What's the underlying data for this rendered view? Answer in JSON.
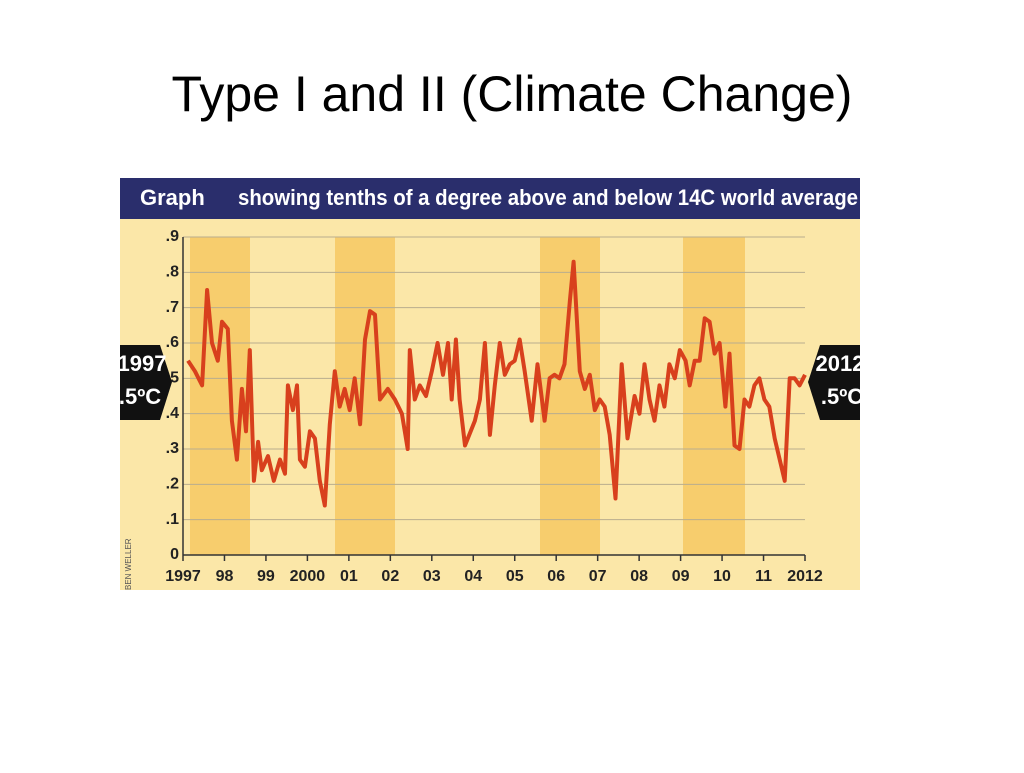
{
  "slide_title": "Type I and II (Climate Change)",
  "chart_data": {
    "type": "line",
    "title": "Graph",
    "subtitle": "showing tenths of a degree above and below 14C world average",
    "credit": "BEN WELLER",
    "annotations": {
      "left": [
        "1997",
        ".5ºC"
      ],
      "right": [
        "2012",
        ".5ºC"
      ]
    },
    "color": "#d8401d",
    "grid": true,
    "xlim": [
      1997,
      2012
    ],
    "ylim": [
      0,
      0.9
    ],
    "xticks": [
      1997,
      {
        "value": 1998,
        "label": "98"
      },
      {
        "value": 1999,
        "label": "99"
      },
      2000,
      {
        "value": 2001,
        "label": "01"
      },
      {
        "value": 2002,
        "label": "02"
      },
      {
        "value": 2003,
        "label": "03"
      },
      {
        "value": 2004,
        "label": "04"
      },
      {
        "value": 2005,
        "label": "05"
      },
      {
        "value": 2006,
        "label": "06"
      },
      {
        "value": 2007,
        "label": "07"
      },
      {
        "value": 2008,
        "label": "08"
      },
      {
        "value": 2009,
        "label": "09"
      },
      {
        "value": 2010,
        "label": "10"
      },
      {
        "value": 2011,
        "label": "11"
      },
      2012
    ],
    "yticks": [
      0,
      {
        "value": 0.1,
        "label": ".1"
      },
      {
        "value": 0.2,
        "label": ".2"
      },
      {
        "value": 0.3,
        "label": ".3"
      },
      {
        "value": 0.4,
        "label": ".4"
      },
      {
        "value": 0.5,
        "label": ".5"
      },
      {
        "value": 0.6,
        "label": ".6"
      },
      {
        "value": 0.7,
        "label": ".7"
      },
      {
        "value": 0.8,
        "label": ".8"
      },
      {
        "value": 0.9,
        "label": ".9"
      }
    ],
    "x": [
      1997.12,
      1997.29,
      1997.46,
      1997.58,
      1997.7,
      1997.84,
      1997.94,
      1998.08,
      1998.18,
      1998.3,
      1998.42,
      1998.52,
      1998.61,
      1998.71,
      1998.81,
      1998.9,
      1999.05,
      1999.19,
      1999.34,
      1999.46,
      1999.53,
      1999.65,
      1999.75,
      1999.82,
      1999.94,
      2000.06,
      2000.18,
      2000.3,
      2000.42,
      2000.54,
      2000.66,
      2000.78,
      2000.9,
      2001.02,
      2001.14,
      2001.27,
      2001.39,
      2001.51,
      2001.63,
      2001.75,
      2001.94,
      2002.11,
      2002.28,
      2002.42,
      2002.47,
      2002.59,
      2002.71,
      2002.86,
      2003.0,
      2003.14,
      2003.27,
      2003.39,
      2003.48,
      2003.58,
      2003.67,
      2003.8,
      2004.04,
      2004.16,
      2004.28,
      2004.4,
      2004.52,
      2004.64,
      2004.76,
      2004.88,
      2005.0,
      2005.12,
      2005.24,
      2005.41,
      2005.55,
      2005.72,
      2005.84,
      2005.96,
      2006.08,
      2006.2,
      2006.33,
      2006.42,
      2006.57,
      2006.69,
      2006.81,
      2006.93,
      2007.05,
      2007.17,
      2007.29,
      2007.43,
      2007.58,
      2007.72,
      2007.89,
      2008.01,
      2008.13,
      2008.25,
      2008.37,
      2008.49,
      2008.61,
      2008.73,
      2008.86,
      2008.98,
      2009.12,
      2009.22,
      2009.34,
      2009.46,
      2009.58,
      2009.7,
      2009.82,
      2009.94,
      2010.08,
      2010.18,
      2010.3,
      2010.42,
      2010.54,
      2010.66,
      2010.78,
      2010.9,
      2011.02,
      2011.14,
      2011.27,
      2011.39,
      2011.51,
      2011.63,
      2011.75,
      2011.87,
      2012.0
    ],
    "values": [
      0.55,
      0.52,
      0.48,
      0.75,
      0.6,
      0.55,
      0.66,
      0.64,
      0.38,
      0.27,
      0.47,
      0.35,
      0.58,
      0.21,
      0.32,
      0.24,
      0.28,
      0.21,
      0.27,
      0.23,
      0.48,
      0.41,
      0.48,
      0.27,
      0.25,
      0.35,
      0.33,
      0.21,
      0.14,
      0.37,
      0.52,
      0.42,
      0.47,
      0.41,
      0.5,
      0.37,
      0.61,
      0.69,
      0.68,
      0.44,
      0.47,
      0.44,
      0.4,
      0.3,
      0.58,
      0.44,
      0.48,
      0.45,
      0.52,
      0.6,
      0.51,
      0.6,
      0.44,
      0.61,
      0.44,
      0.31,
      0.38,
      0.44,
      0.6,
      0.34,
      0.48,
      0.6,
      0.51,
      0.54,
      0.55,
      0.61,
      0.52,
      0.38,
      0.54,
      0.38,
      0.5,
      0.51,
      0.5,
      0.54,
      0.72,
      0.83,
      0.52,
      0.47,
      0.51,
      0.41,
      0.44,
      0.42,
      0.34,
      0.16,
      0.54,
      0.33,
      0.45,
      0.4,
      0.54,
      0.44,
      0.38,
      0.48,
      0.42,
      0.54,
      0.5,
      0.58,
      0.55,
      0.48,
      0.55,
      0.55,
      0.67,
      0.66,
      0.57,
      0.6,
      0.42,
      0.57,
      0.31,
      0.3,
      0.44,
      0.42,
      0.48,
      0.5,
      0.44,
      0.42,
      0.33,
      0.27,
      0.21,
      0.5,
      0.5,
      0.48,
      0.51
    ]
  }
}
